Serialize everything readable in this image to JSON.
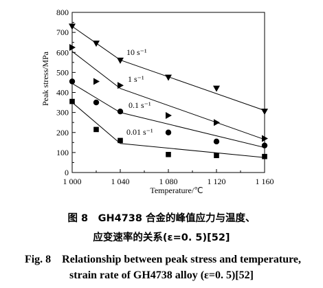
{
  "chart_data": {
    "type": "scatter",
    "title": "",
    "xlabel": "Temperature/℃",
    "ylabel": "Peak stress/MPa",
    "xlim": [
      1000,
      1160
    ],
    "ylim": [
      0,
      800
    ],
    "x_ticks": [
      1000,
      1040,
      1080,
      1120,
      1160
    ],
    "x_tick_labels": [
      "1 000",
      "1 040",
      "1 080",
      "1 120",
      "1 160"
    ],
    "y_ticks": [
      0,
      100,
      200,
      300,
      400,
      500,
      600,
      700,
      800
    ],
    "y_tick_labels": [
      "0",
      "100",
      "200",
      "300",
      "400",
      "500",
      "600",
      "700",
      "800"
    ],
    "grid": false,
    "legend": "none",
    "series": [
      {
        "label": "10 s⁻¹",
        "marker": "down-triangle",
        "points": [
          [
            1000,
            730
          ],
          [
            1020,
            645
          ],
          [
            1040,
            560
          ],
          [
            1080,
            475
          ],
          [
            1120,
            420
          ],
          [
            1160,
            305
          ]
        ],
        "fit": [
          [
            1000,
            730
          ],
          [
            1040,
            562
          ],
          [
            1160,
            310
          ]
        ]
      },
      {
        "label": "1 s⁻¹",
        "marker": "right-triangle",
        "points": [
          [
            1000,
            625
          ],
          [
            1020,
            455
          ],
          [
            1040,
            435
          ],
          [
            1080,
            285
          ],
          [
            1120,
            250
          ],
          [
            1160,
            170
          ]
        ],
        "fit": [
          [
            1000,
            605
          ],
          [
            1040,
            420
          ],
          [
            1160,
            165
          ]
        ]
      },
      {
        "label": "0.1 s⁻¹",
        "marker": "circle",
        "points": [
          [
            1000,
            455
          ],
          [
            1020,
            350
          ],
          [
            1040,
            305
          ],
          [
            1080,
            200
          ],
          [
            1120,
            155
          ],
          [
            1160,
            135
          ]
        ],
        "fit": [
          [
            1000,
            445
          ],
          [
            1040,
            300
          ],
          [
            1160,
            125
          ]
        ]
      },
      {
        "label": "0.01 s⁻¹",
        "marker": "square",
        "points": [
          [
            1000,
            355
          ],
          [
            1020,
            215
          ],
          [
            1040,
            160
          ],
          [
            1080,
            90
          ],
          [
            1120,
            85
          ],
          [
            1160,
            80
          ]
        ],
        "fit": [
          [
            1000,
            350
          ],
          [
            1040,
            145
          ],
          [
            1160,
            75
          ]
        ]
      }
    ]
  },
  "captions": {
    "cn_line1": "图 8　GH4738 合金的峰值应力与温度、",
    "cn_line2": "应变速率的关系(ε=0. 5)[52]",
    "en_line1": "Fig. 8　Relationship between peak stress and temperature,",
    "en_line2": "strain rate of GH4738 alloy (ε=0. 5)[52]"
  }
}
